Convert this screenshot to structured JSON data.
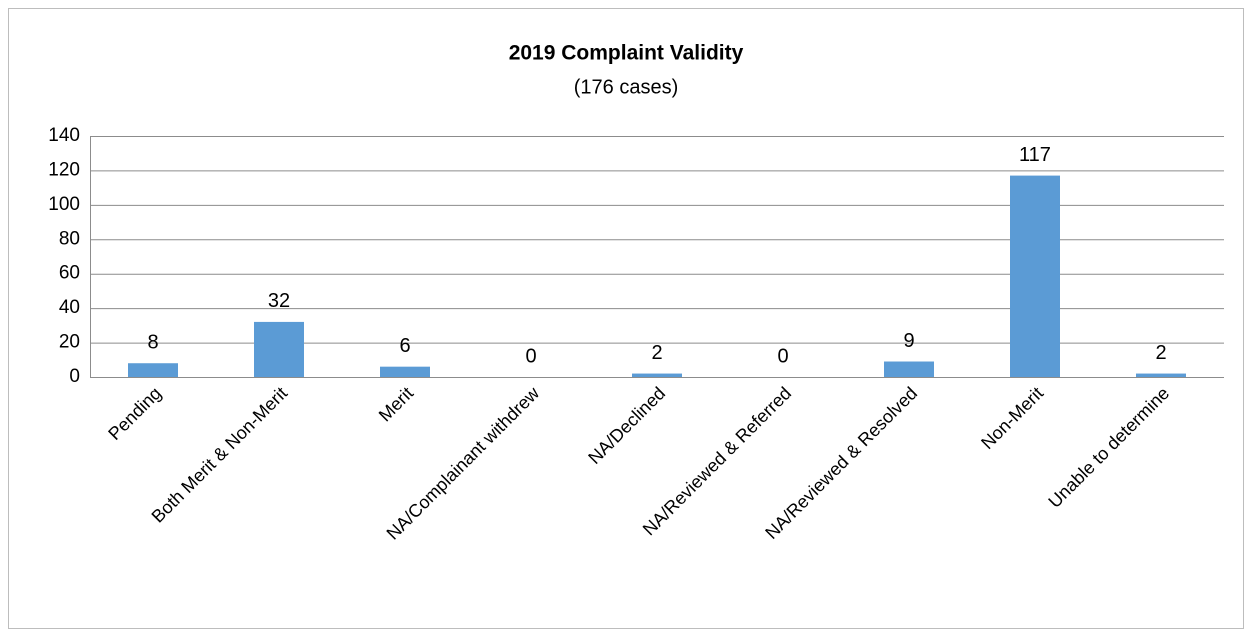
{
  "chart_data": {
    "type": "bar",
    "title": "2019 Complaint Validity",
    "subtitle": "(176 cases)",
    "categories": [
      "Pending",
      "Both Merit & Non-Merit",
      "Merit",
      "NA/Complainant withdrew",
      "NA/Declined",
      "NA/Reviewed & Referred",
      "NA/Reviewed & Resolved",
      "Non-Merit",
      "Unable to determine"
    ],
    "values": [
      8,
      32,
      6,
      0,
      2,
      0,
      9,
      117,
      2
    ],
    "color": "#5b9bd5",
    "ylim": [
      0,
      140
    ],
    "yticks": [
      0,
      20,
      40,
      60,
      80,
      100,
      120,
      140
    ],
    "grid": true
  }
}
